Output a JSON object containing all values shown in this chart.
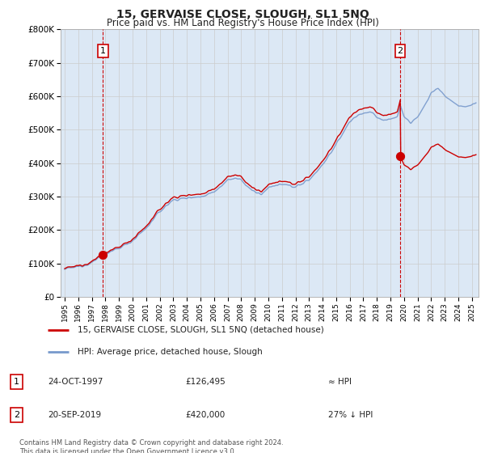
{
  "title": "15, GERVAISE CLOSE, SLOUGH, SL1 5NQ",
  "subtitle": "Price paid vs. HM Land Registry's House Price Index (HPI)",
  "legend_line1": "15, GERVAISE CLOSE, SLOUGH, SL1 5NQ (detached house)",
  "legend_line2": "HPI: Average price, detached house, Slough",
  "table_rows": [
    {
      "num": "1",
      "date": "24-OCT-1997",
      "price": "£126,495",
      "rel": "≈ HPI"
    },
    {
      "num": "2",
      "date": "20-SEP-2019",
      "price": "£420,000",
      "rel": "27% ↓ HPI"
    }
  ],
  "footer": "Contains HM Land Registry data © Crown copyright and database right 2024.\nThis data is licensed under the Open Government Licence v3.0.",
  "sale1_year": 1997.81,
  "sale1_price": 126495,
  "sale2_year": 2019.72,
  "sale2_price": 420000,
  "hpi_scale": 126495,
  "hpi_at_sale1": 126495,
  "ylim": [
    0,
    800000
  ],
  "xlim_start": 1994.7,
  "xlim_end": 2025.5,
  "red_color": "#cc0000",
  "blue_color": "#7799cc",
  "grid_color": "#cccccc",
  "bg_color": "#ffffff",
  "plot_bg": "#dce8f5"
}
